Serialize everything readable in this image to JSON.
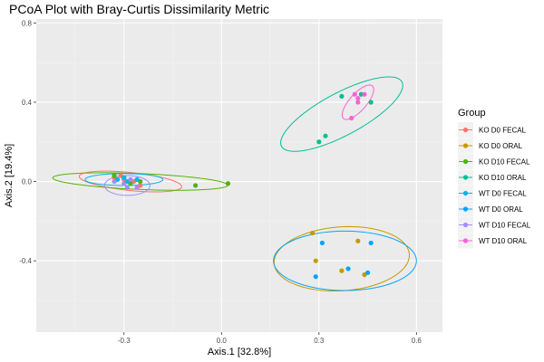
{
  "chart_data": {
    "type": "scatter",
    "title": "PCoA Plot with Bray-Curtis Dissimilarity Metric",
    "xlabel": "Axis.1   [32.8%]",
    "ylabel": "Axis.2   [19.4%]",
    "xlim": [
      -0.57,
      0.68
    ],
    "ylim": [
      -0.76,
      0.82
    ],
    "x_ticks": [
      -0.3,
      0.0,
      0.3,
      0.6
    ],
    "x_tick_labels": [
      "-0.3",
      "0.0",
      "0.3",
      "0.6"
    ],
    "y_ticks": [
      -0.4,
      0.0,
      0.4,
      0.8
    ],
    "y_tick_labels": [
      "-0.4",
      "0.0",
      "0.4",
      "0.8"
    ],
    "grid": true,
    "background": "#ebebeb",
    "legend": {
      "title": "Group",
      "position": "right"
    },
    "series": [
      {
        "name": "KO D0 FECAL",
        "color": "#f8766d",
        "points": [
          [
            -0.33,
            0.02
          ],
          [
            -0.3,
            0.01
          ],
          [
            -0.27,
            0.0
          ],
          [
            -0.25,
            -0.02
          ],
          [
            -0.31,
            0.03
          ]
        ],
        "ellipse": {
          "cx": -0.28,
          "cy": 0.0,
          "rx": 0.16,
          "ry": 0.045,
          "angle_deg": -10
        }
      },
      {
        "name": "KO D0 ORAL",
        "color": "#c49a00",
        "points": [
          [
            0.28,
            -0.26
          ],
          [
            0.29,
            -0.4
          ],
          [
            0.37,
            -0.45
          ],
          [
            0.42,
            -0.3
          ],
          [
            0.44,
            -0.47
          ]
        ],
        "ellipse": {
          "cx": 0.37,
          "cy": -0.39,
          "rx": 0.21,
          "ry": 0.16,
          "angle_deg": 12
        }
      },
      {
        "name": "KO D10 FECAL",
        "color": "#53b400",
        "points": [
          [
            -0.33,
            0.03
          ],
          [
            -0.3,
            0.02
          ],
          [
            -0.25,
            0.0
          ],
          [
            -0.28,
            -0.01
          ],
          [
            -0.08,
            -0.02
          ],
          [
            0.02,
            -0.01
          ]
        ],
        "ellipse": {
          "cx": -0.25,
          "cy": 0.0,
          "rx": 0.27,
          "ry": 0.04,
          "angle_deg": -4
        }
      },
      {
        "name": "KO D10 ORAL",
        "color": "#00c094",
        "points": [
          [
            0.3,
            0.2
          ],
          [
            0.32,
            0.23
          ],
          [
            0.37,
            0.43
          ],
          [
            0.43,
            0.44
          ],
          [
            0.46,
            0.4
          ]
        ],
        "ellipse": {
          "cx": 0.37,
          "cy": 0.34,
          "rx": 0.25,
          "ry": 0.09,
          "angle_deg": 45
        }
      },
      {
        "name": "WT D0 FECAL",
        "color": "#00b6eb",
        "points": [
          [
            -0.32,
            0.01
          ],
          [
            -0.29,
            0.0
          ],
          [
            -0.26,
            0.01
          ],
          [
            -0.3,
            0.02
          ]
        ],
        "ellipse": {
          "cx": -0.3,
          "cy": 0.01,
          "rx": 0.12,
          "ry": 0.03,
          "angle_deg": 0
        }
      },
      {
        "name": "WT D0 ORAL",
        "color": "#06a4ff",
        "points": [
          [
            0.29,
            -0.48
          ],
          [
            0.31,
            -0.31
          ],
          [
            0.39,
            -0.44
          ],
          [
            0.45,
            -0.46
          ],
          [
            0.46,
            -0.31
          ]
        ],
        "ellipse": {
          "cx": 0.38,
          "cy": -0.4,
          "rx": 0.22,
          "ry": 0.15,
          "angle_deg": 0
        }
      },
      {
        "name": "WT D10 FECAL",
        "color": "#a58aff",
        "points": [
          [
            -0.33,
            0.0
          ],
          [
            -0.3,
            -0.01
          ],
          [
            -0.29,
            -0.03
          ],
          [
            -0.26,
            -0.03
          ],
          [
            -0.28,
            0.01
          ]
        ],
        "ellipse": {
          "cx": -0.29,
          "cy": -0.02,
          "rx": 0.07,
          "ry": 0.05,
          "angle_deg": 0
        }
      },
      {
        "name": "WT D10 ORAL",
        "color": "#fb61d7",
        "points": [
          [
            0.41,
            0.44
          ],
          [
            0.42,
            0.42
          ],
          [
            0.44,
            0.44
          ],
          [
            0.4,
            0.32
          ],
          [
            0.42,
            0.4
          ]
        ],
        "ellipse": {
          "cx": 0.42,
          "cy": 0.4,
          "rx": 0.095,
          "ry": 0.03,
          "angle_deg": 65
        }
      }
    ]
  }
}
